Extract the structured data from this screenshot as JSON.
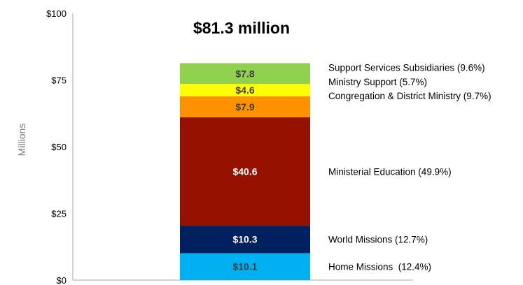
{
  "chart_data": {
    "type": "bar",
    "stacked": true,
    "title": "$81.3 million",
    "xlabel": "",
    "ylabel": "Millions",
    "ylim": [
      0,
      100
    ],
    "yticks": [
      0,
      25,
      50,
      75,
      100
    ],
    "ytick_labels": [
      "$0",
      "$25",
      "$50",
      "$75",
      "$100"
    ],
    "grid": false,
    "legend_placement": "right-of-bar",
    "series": [
      {
        "name": "Home Missions  (12.4%)",
        "value": 10.1,
        "value_label": "$10.1",
        "color": "#00b0f0",
        "label_color": "#404040"
      },
      {
        "name": "World Missions (12.7%)",
        "value": 10.3,
        "value_label": "$10.3",
        "color": "#002060",
        "label_color": "#ffffff"
      },
      {
        "name": "Ministerial Education (49.9%)",
        "value": 40.6,
        "value_label": "$40.6",
        "color": "#951200",
        "label_color": "#ffffff"
      },
      {
        "name": "Congregation & District Ministry (9.7%)",
        "value": 7.9,
        "value_label": "$7.9",
        "color": "#ff9100",
        "label_color": "#404040"
      },
      {
        "name": "Ministry Support (5.7%)",
        "value": 4.6,
        "value_label": "$4.6",
        "color": "#ffff00",
        "label_color": "#404040"
      },
      {
        "name": "Support Services Subsidiaries (9.6%)",
        "value": 7.8,
        "value_label": "$7.8",
        "color": "#92d050",
        "label_color": "#404040"
      }
    ]
  }
}
